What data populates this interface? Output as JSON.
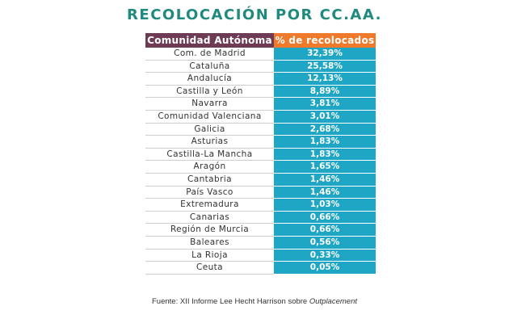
{
  "title": "RECOLOCACIÓN POR CC.AA.",
  "chart_data": {
    "type": "table",
    "columns": [
      "Comunidad Autónoma",
      "% de recolocados"
    ],
    "rows": [
      {
        "name": "Com. de Madrid",
        "value": "32,39%"
      },
      {
        "name": "Cataluña",
        "value": "25,58%"
      },
      {
        "name": "Andalucía",
        "value": "12,13%"
      },
      {
        "name": "Castilla y León",
        "value": "8,89%"
      },
      {
        "name": "Navarra",
        "value": "3,81%"
      },
      {
        "name": "Comunidad Valenciana",
        "value": "3,01%"
      },
      {
        "name": "Galicia",
        "value": "2,68%"
      },
      {
        "name": "Asturias",
        "value": "1,83%"
      },
      {
        "name": "Castilla-La Mancha",
        "value": "1,83%"
      },
      {
        "name": "Aragón",
        "value": "1,65%"
      },
      {
        "name": "Cantabria",
        "value": "1,46%"
      },
      {
        "name": "País Vasco",
        "value": "1,46%"
      },
      {
        "name": "Extremadura",
        "value": "1,03%"
      },
      {
        "name": "Canarias",
        "value": "0,66%"
      },
      {
        "name": "Región de Murcia",
        "value": "0,66%"
      },
      {
        "name": "Baleares",
        "value": "0,56%"
      },
      {
        "name": "La Rioja",
        "value": "0,33%"
      },
      {
        "name": "Ceuta",
        "value": "0,05%"
      }
    ]
  },
  "source_text": "Fuente: XII Informe Lee Hecht Harrison sobre ",
  "source_italic": "Outplacement",
  "colors": {
    "title": "#1f8a7d",
    "header_left": "#6e3b55",
    "header_right": "#f07a2c",
    "value_cells": "#1fa6c4"
  }
}
